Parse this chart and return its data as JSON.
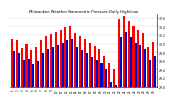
{
  "title": "Milwaukee Weather Barometric Pressure Daily High/Low",
  "high_color": "#ff0000",
  "low_color": "#0000cc",
  "background_color": "#ffffff",
  "ylim": [
    29.0,
    30.7
  ],
  "ytick_vals": [
    29.0,
    29.2,
    29.4,
    29.6,
    29.8,
    30.0,
    30.2,
    30.4,
    30.6
  ],
  "ytick_labels": [
    "29.0",
    "29.2",
    "29.4",
    "29.6",
    "29.8",
    "30.0",
    "30.2",
    "30.4",
    "30.6"
  ],
  "dates": [
    "1",
    "2",
    "3",
    "4",
    "5",
    "6",
    "7",
    "8",
    "9",
    "10",
    "11",
    "12",
    "13",
    "14",
    "15",
    "16",
    "17",
    "18",
    "19",
    "20",
    "21",
    "22",
    "23",
    "24",
    "25",
    "26",
    "27",
    "28",
    "29",
    "30"
  ],
  "highs": [
    30.12,
    30.08,
    29.9,
    30.0,
    29.85,
    29.92,
    30.08,
    30.18,
    30.22,
    30.28,
    30.32,
    30.38,
    30.4,
    30.25,
    30.18,
    30.1,
    30.02,
    29.95,
    29.88,
    29.72,
    29.55,
    29.42,
    30.58,
    30.65,
    30.52,
    30.42,
    30.32,
    30.25,
    29.92,
    30.05
  ],
  "lows": [
    29.82,
    29.78,
    29.62,
    29.65,
    29.52,
    29.6,
    29.78,
    29.88,
    29.92,
    29.98,
    30.02,
    30.08,
    30.12,
    29.92,
    29.85,
    29.78,
    29.68,
    29.62,
    29.55,
    29.42,
    29.12,
    29.05,
    30.15,
    30.28,
    30.15,
    30.02,
    29.98,
    29.88,
    29.62,
    29.72
  ],
  "bar_width": 0.42,
  "n_bars": 30
}
